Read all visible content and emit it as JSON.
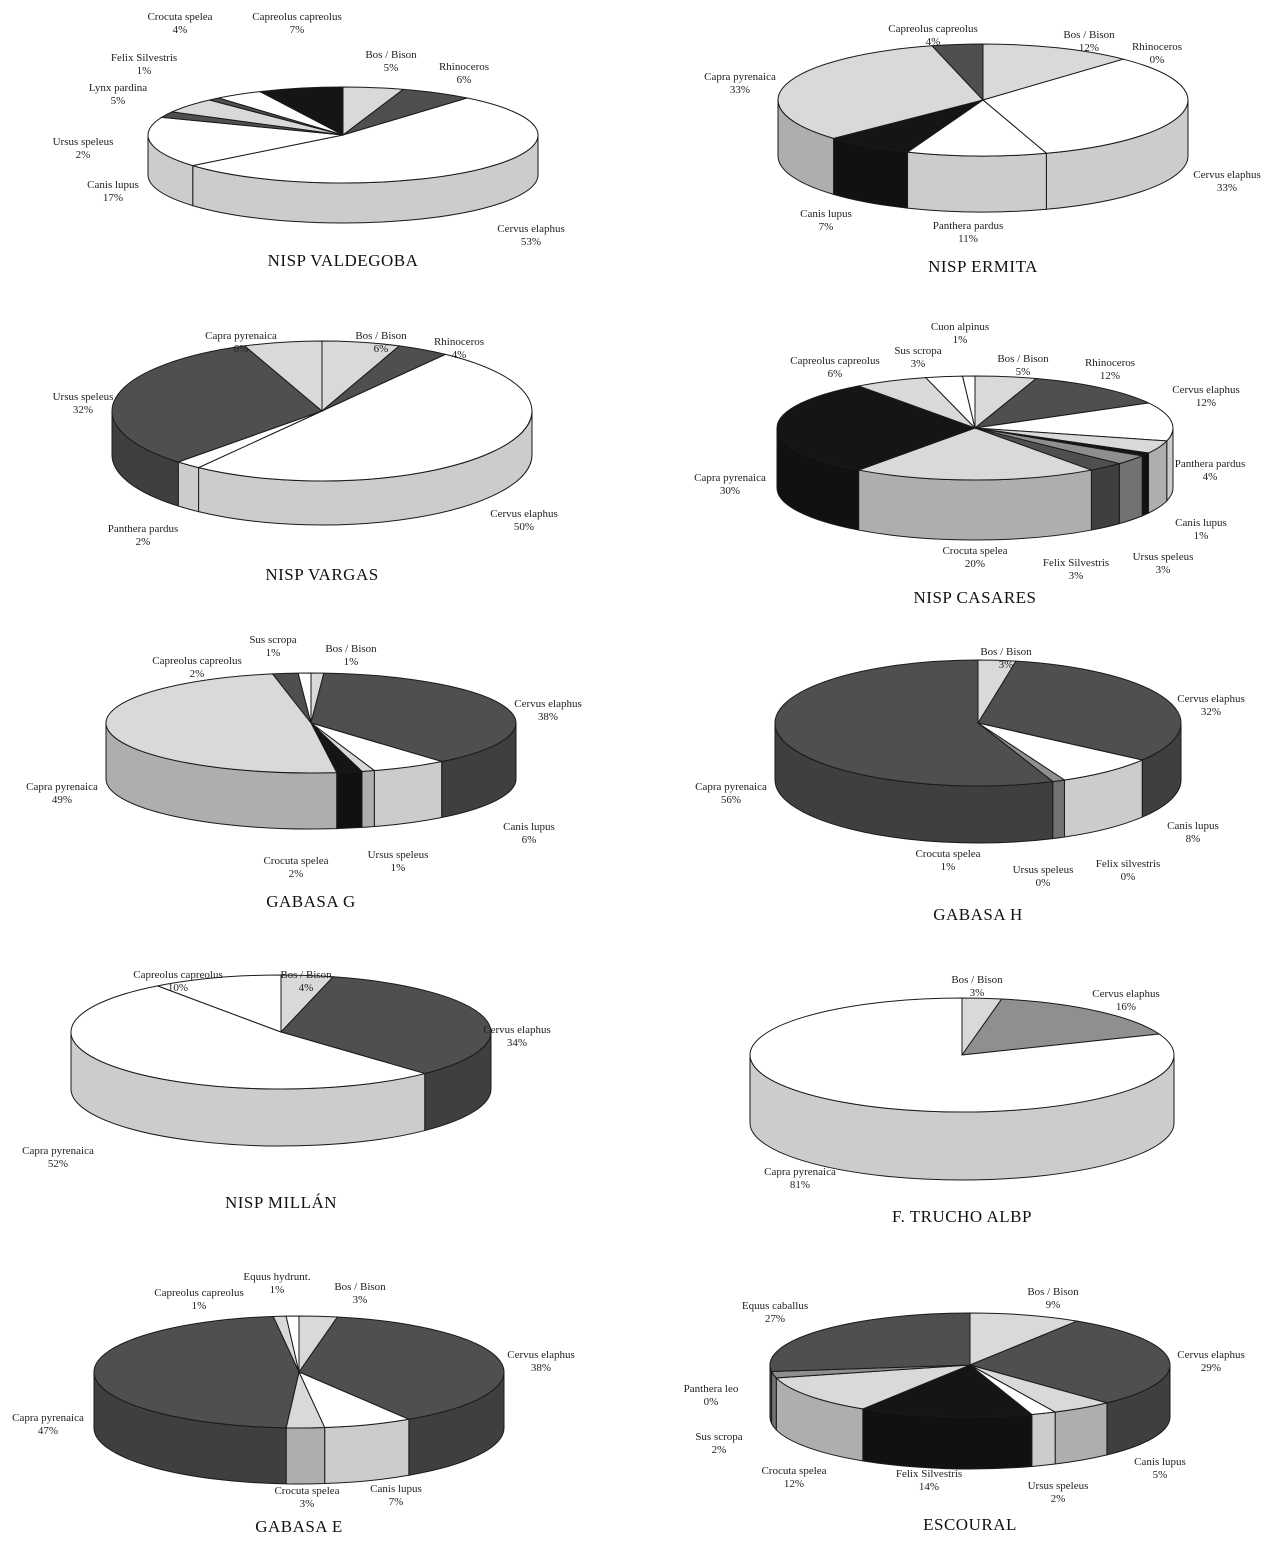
{
  "colors": {
    "white": "#ffffff",
    "light": "#d9d9d9",
    "mid": "#8f8f8f",
    "dark": "#4f4f4f",
    "black": "#151515",
    "outline": "#1a1a1a",
    "text": "#222222"
  },
  "chart_data": [
    {
      "type": "pie",
      "title": "NISP VALDEGOBA",
      "slices": [
        {
          "label": "Bos / Bison",
          "pct_label": "5%",
          "value": 5,
          "color": "light"
        },
        {
          "label": "Rhinoceros",
          "pct_label": "6%",
          "value": 6,
          "color": "dark"
        },
        {
          "label": "Cervus elaphus",
          "pct_label": "53%",
          "value": 53,
          "color": "white"
        },
        {
          "label": "Canis lupus",
          "pct_label": "17%",
          "value": 17,
          "color": "white"
        },
        {
          "label": "Ursus speleus",
          "pct_label": "2%",
          "value": 2,
          "color": "dark"
        },
        {
          "label": "Lynx pardina",
          "pct_label": "5%",
          "value": 5,
          "color": "light"
        },
        {
          "label": "Felix Silvestris",
          "pct_label": "1%",
          "value": 1,
          "color": "dark"
        },
        {
          "label": "Crocuta spelea",
          "pct_label": "4%",
          "value": 4,
          "color": "white"
        },
        {
          "label": "Capreolus capreolus",
          "pct_label": "7%",
          "value": 7,
          "color": "black"
        }
      ]
    },
    {
      "type": "pie",
      "title": "NISP ERMITA",
      "slices": [
        {
          "label": "Bos / Bison",
          "pct_label": "12%",
          "value": 12,
          "color": "light"
        },
        {
          "label": "Rhinoceros",
          "pct_label": "0%",
          "value": 0,
          "color": "mid"
        },
        {
          "label": "Cervus elaphus",
          "pct_label": "33%",
          "value": 33,
          "color": "white"
        },
        {
          "label": "Panthera pardus",
          "pct_label": "11%",
          "value": 11,
          "color": "white"
        },
        {
          "label": "Canis lupus",
          "pct_label": "7%",
          "value": 7,
          "color": "black"
        },
        {
          "label": "Capra pyrenaica",
          "pct_label": "33%",
          "value": 33,
          "color": "light"
        },
        {
          "label": "Capreolus capreolus",
          "pct_label": "4%",
          "value": 4,
          "color": "dark"
        }
      ]
    },
    {
      "type": "pie",
      "title": "NISP VARGAS",
      "slices": [
        {
          "label": "Bos / Bison",
          "pct_label": "6%",
          "value": 6,
          "color": "light"
        },
        {
          "label": "Rhinoceros",
          "pct_label": "4%",
          "value": 4,
          "color": "dark"
        },
        {
          "label": "Cervus elaphus",
          "pct_label": "50%",
          "value": 50,
          "color": "white"
        },
        {
          "label": "Panthera pardus",
          "pct_label": "2%",
          "value": 2,
          "color": "white"
        },
        {
          "label": "Ursus speleus",
          "pct_label": "32%",
          "value": 32,
          "color": "dark"
        },
        {
          "label": "Capra pyrenaica",
          "pct_label": "6%",
          "value": 6,
          "color": "light"
        }
      ]
    },
    {
      "type": "pie",
      "title": "NISP CASARES",
      "slices": [
        {
          "label": "Bos / Bison",
          "pct_label": "5%",
          "value": 5,
          "color": "light"
        },
        {
          "label": "Rhinoceros",
          "pct_label": "12%",
          "value": 12,
          "color": "dark"
        },
        {
          "label": "Cervus elaphus",
          "pct_label": "12%",
          "value": 12,
          "color": "white"
        },
        {
          "label": "Panthera pardus",
          "pct_label": "4%",
          "value": 4,
          "color": "light"
        },
        {
          "label": "Canis lupus",
          "pct_label": "1%",
          "value": 1,
          "color": "black"
        },
        {
          "label": "Ursus speleus",
          "pct_label": "3%",
          "value": 3,
          "color": "mid"
        },
        {
          "label": "Felix Silvestris",
          "pct_label": "3%",
          "value": 3,
          "color": "dark"
        },
        {
          "label": "Crocuta spelea",
          "pct_label": "20%",
          "value": 20,
          "color": "light"
        },
        {
          "label": "Capra pyrenaica",
          "pct_label": "30%",
          "value": 30,
          "color": "black"
        },
        {
          "label": "Capreolus capreolus",
          "pct_label": "6%",
          "value": 6,
          "color": "light"
        },
        {
          "label": "Sus scropa",
          "pct_label": "3%",
          "value": 3,
          "color": "white"
        },
        {
          "label": "Cuon alpinus",
          "pct_label": "1%",
          "value": 1,
          "color": "white"
        }
      ]
    },
    {
      "type": "pie",
      "title": "GABASA G",
      "slices": [
        {
          "label": "Bos / Bison",
          "pct_label": "1%",
          "value": 1,
          "color": "light"
        },
        {
          "label": "Cervus elaphus",
          "pct_label": "38%",
          "value": 38,
          "color": "dark"
        },
        {
          "label": "Canis lupus",
          "pct_label": "6%",
          "value": 6,
          "color": "white"
        },
        {
          "label": "Ursus speleus",
          "pct_label": "1%",
          "value": 1,
          "color": "light"
        },
        {
          "label": "Crocuta spelea",
          "pct_label": "2%",
          "value": 2,
          "color": "black"
        },
        {
          "label": "Capra pyrenaica",
          "pct_label": "49%",
          "value": 49,
          "color": "light"
        },
        {
          "label": "Capreolus capreolus",
          "pct_label": "2%",
          "value": 2,
          "color": "dark"
        },
        {
          "label": "Sus scropa",
          "pct_label": "1%",
          "value": 1,
          "color": "white"
        }
      ]
    },
    {
      "type": "pie",
      "title": "GABASA H",
      "slices": [
        {
          "label": "Bos / Bison",
          "pct_label": "3%",
          "value": 3,
          "color": "light"
        },
        {
          "label": "Cervus elaphus",
          "pct_label": "32%",
          "value": 32,
          "color": "dark"
        },
        {
          "label": "Felix silvestris",
          "pct_label": "0%",
          "value": 0,
          "color": "mid"
        },
        {
          "label": "Canis lupus",
          "pct_label": "8%",
          "value": 8,
          "color": "white"
        },
        {
          "label": "Ursus speleus",
          "pct_label": "0%",
          "value": 0,
          "color": "light"
        },
        {
          "label": "Crocuta spelea",
          "pct_label": "1%",
          "value": 1,
          "color": "mid"
        },
        {
          "label": "Capra pyrenaica",
          "pct_label": "56%",
          "value": 56,
          "color": "dark"
        }
      ]
    },
    {
      "type": "pie",
      "title": "NISP MILLÁN",
      "slices": [
        {
          "label": "Bos / Bison",
          "pct_label": "4%",
          "value": 4,
          "color": "light"
        },
        {
          "label": "Cervus elaphus",
          "pct_label": "34%",
          "value": 34,
          "color": "dark"
        },
        {
          "label": "Capra pyrenaica",
          "pct_label": "52%",
          "value": 52,
          "color": "white"
        },
        {
          "label": "Capreolus capreolus",
          "pct_label": "10%",
          "value": 10,
          "color": "white"
        }
      ]
    },
    {
      "type": "pie",
      "title": "F. TRUCHO ALBP",
      "slices": [
        {
          "label": "Bos / Bison",
          "pct_label": "3%",
          "value": 3,
          "color": "light"
        },
        {
          "label": "Cervus elaphus",
          "pct_label": "16%",
          "value": 16,
          "color": "mid"
        },
        {
          "label": "Capra pyrenaica",
          "pct_label": "81%",
          "value": 81,
          "color": "white"
        }
      ]
    },
    {
      "type": "pie",
      "title": "GABASA E",
      "slices": [
        {
          "label": "Bos / Bison",
          "pct_label": "3%",
          "value": 3,
          "color": "light"
        },
        {
          "label": "Cervus elaphus",
          "pct_label": "38%",
          "value": 38,
          "color": "dark"
        },
        {
          "label": "Canis lupus",
          "pct_label": "7%",
          "value": 7,
          "color": "white"
        },
        {
          "label": "Crocuta spelea",
          "pct_label": "3%",
          "value": 3,
          "color": "light"
        },
        {
          "label": "Capra pyrenaica",
          "pct_label": "47%",
          "value": 47,
          "color": "dark"
        },
        {
          "label": "Capreolus capreolus",
          "pct_label": "1%",
          "value": 1,
          "color": "light"
        },
        {
          "label": "Equus hydrunt.",
          "pct_label": "1%",
          "value": 1,
          "color": "white"
        }
      ]
    },
    {
      "type": "pie",
      "title": "ESCOURAL",
      "slices": [
        {
          "label": "Bos / Bison",
          "pct_label": "9%",
          "value": 9,
          "color": "light"
        },
        {
          "label": "Cervus elaphus",
          "pct_label": "29%",
          "value": 29,
          "color": "dark"
        },
        {
          "label": "Canis lupus",
          "pct_label": "5%",
          "value": 5,
          "color": "light"
        },
        {
          "label": "Ursus speleus",
          "pct_label": "2%",
          "value": 2,
          "color": "white"
        },
        {
          "label": "Felix Silvestris",
          "pct_label": "14%",
          "value": 14,
          "color": "black"
        },
        {
          "label": "Crocuta spelea",
          "pct_label": "12%",
          "value": 12,
          "color": "light"
        },
        {
          "label": "Sus scropa",
          "pct_label": "2%",
          "value": 2,
          "color": "mid"
        },
        {
          "label": "Panthera leo",
          "pct_label": "0%",
          "value": 0,
          "color": "white"
        },
        {
          "label": "Equus caballus",
          "pct_label": "27%",
          "value": 27,
          "color": "dark"
        }
      ]
    }
  ]
}
